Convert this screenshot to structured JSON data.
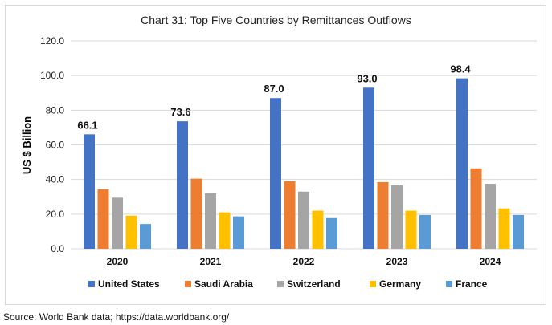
{
  "chart_data": {
    "type": "bar",
    "title": "Chart 31: Top Five Countries by Remittances Outflows",
    "ylabel": "US $ Billion",
    "xlabel": "",
    "ylim": [
      0,
      120
    ],
    "yticks": [
      "0.0",
      "20.0",
      "40.0",
      "60.0",
      "80.0",
      "100.0",
      "120.0"
    ],
    "categories": [
      "2020",
      "2021",
      "2022",
      "2023",
      "2024"
    ],
    "grid": true,
    "legend_position": "bottom",
    "series": [
      {
        "name": "United States",
        "color": "#4472C4",
        "values": [
          66.1,
          73.6,
          87.0,
          93.0,
          98.4
        ],
        "labels": [
          "66.1",
          "73.6",
          "87.0",
          "93.0",
          "98.4"
        ]
      },
      {
        "name": "Saudi Arabia",
        "color": "#ED7D31",
        "values": [
          34.4,
          40.5,
          39.0,
          38.5,
          46.4
        ]
      },
      {
        "name": "Switzerland",
        "color": "#A5A5A5",
        "values": [
          29.5,
          32.0,
          33.0,
          36.7,
          37.5
        ]
      },
      {
        "name": "Germany",
        "color": "#FFC000",
        "values": [
          19.1,
          21.0,
          22.0,
          22.0,
          23.3
        ]
      },
      {
        "name": "France",
        "color": "#5B9BD5",
        "values": [
          14.3,
          18.7,
          17.7,
          19.5,
          19.5
        ]
      }
    ]
  },
  "source": "Source: World Bank data; https://data.worldbank.org/"
}
